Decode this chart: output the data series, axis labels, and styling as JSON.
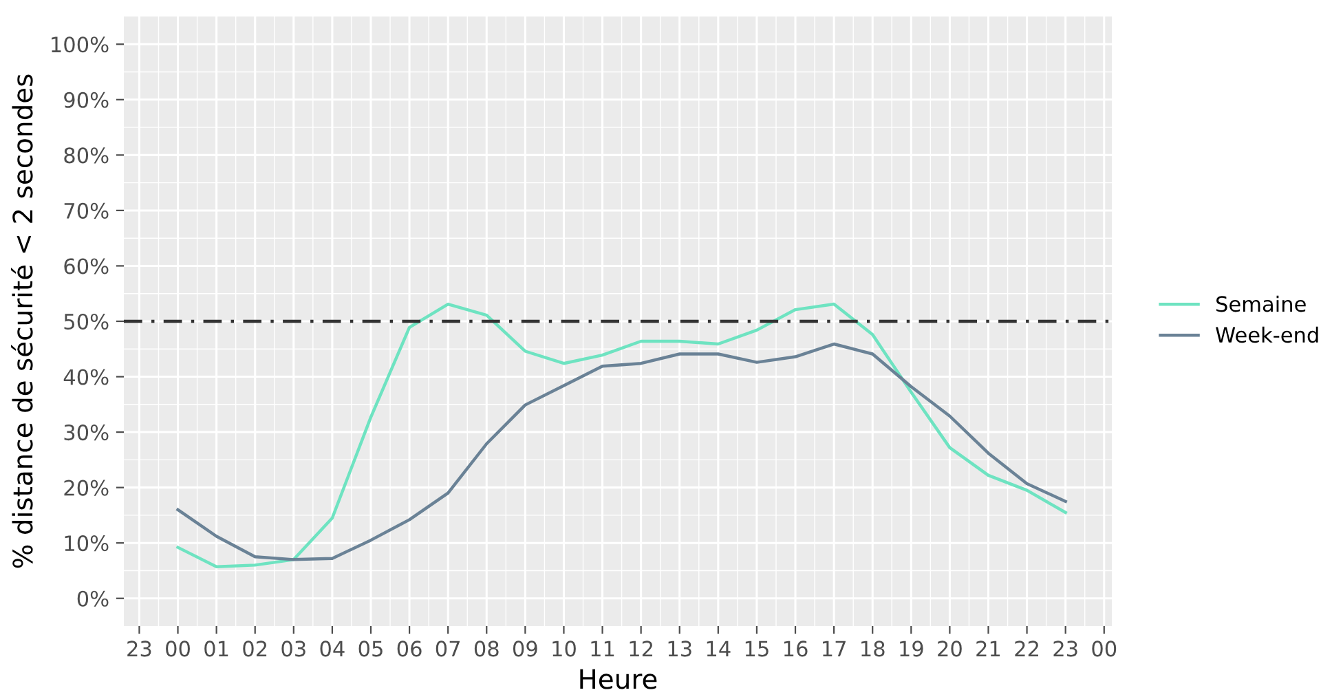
{
  "chart_data": {
    "type": "line",
    "xlabel": "Heure",
    "ylabel": "% distance de sécurité < 2 secondes",
    "categories": [
      "23",
      "00",
      "01",
      "02",
      "03",
      "04",
      "05",
      "06",
      "07",
      "08",
      "09",
      "10",
      "11",
      "12",
      "13",
      "14",
      "15",
      "16",
      "17",
      "18",
      "19",
      "20",
      "21",
      "22",
      "23",
      "00"
    ],
    "series": [
      {
        "name": "Semaine",
        "color": "#6ee3c1",
        "values": [
          null,
          9.2,
          5.7,
          6.0,
          7.0,
          14.5,
          32.7,
          48.9,
          53.1,
          51.1,
          44.6,
          42.4,
          43.9,
          46.4,
          46.4,
          45.9,
          48.4,
          52.1,
          53.1,
          47.6,
          37.2,
          27.2,
          22.2,
          19.5,
          15.5,
          null
        ]
      },
      {
        "name": "Week-end",
        "color": "#6a8296",
        "values": [
          null,
          16.0,
          11.2,
          7.5,
          7.0,
          7.2,
          10.5,
          14.2,
          19.0,
          27.9,
          34.9,
          38.4,
          41.9,
          42.4,
          44.1,
          44.1,
          42.6,
          43.6,
          45.9,
          44.1,
          38.2,
          32.9,
          26.2,
          20.7,
          17.5,
          null
        ]
      }
    ],
    "ylim": [
      -5,
      105
    ],
    "yticks": [
      {
        "value": 0,
        "label": "0%"
      },
      {
        "value": 10,
        "label": "10%"
      },
      {
        "value": 20,
        "label": "20%"
      },
      {
        "value": 30,
        "label": "30%"
      },
      {
        "value": 40,
        "label": "40%"
      },
      {
        "value": 50,
        "label": "50%"
      },
      {
        "value": 60,
        "label": "60%"
      },
      {
        "value": 70,
        "label": "70%"
      },
      {
        "value": 80,
        "label": "80%"
      },
      {
        "value": 90,
        "label": "90%"
      },
      {
        "value": 100,
        "label": "100%"
      }
    ],
    "ref_lines": [
      {
        "axis": "y",
        "value": 50,
        "color": "#333333"
      }
    ],
    "grid": true,
    "legend": "right"
  }
}
